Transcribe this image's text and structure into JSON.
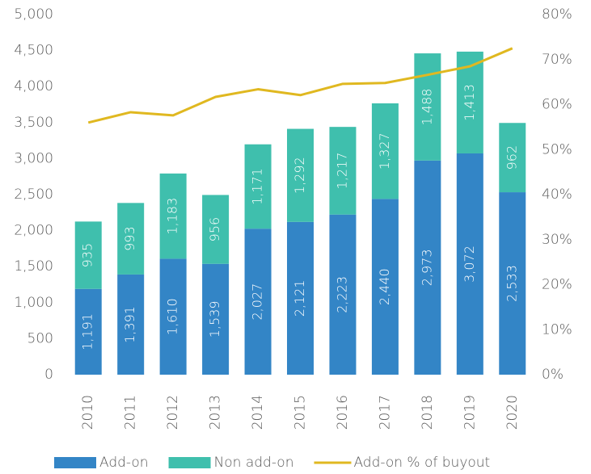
{
  "chart_data": {
    "type": "bar",
    "stacked": true,
    "categories": [
      "2010",
      "2011",
      "2012",
      "2013",
      "2014",
      "2015",
      "2016",
      "2017",
      "2018",
      "2019",
      "2020"
    ],
    "series": [
      {
        "name": "Add-on",
        "type": "bar",
        "color": "#3385c6",
        "values": [
          1191,
          1391,
          1610,
          1539,
          2027,
          2121,
          2223,
          2440,
          2973,
          3072,
          2533
        ],
        "value_labels": [
          "1,191",
          "1,391",
          "1,610",
          "1,539",
          "2,027",
          "2,121",
          "2,223",
          "2,440",
          "2,973",
          "3,072",
          "2,533"
        ]
      },
      {
        "name": "Non add-on",
        "type": "bar",
        "color": "#3fbfad",
        "values": [
          935,
          993,
          1183,
          956,
          1171,
          1292,
          1217,
          1327,
          1488,
          1413,
          962
        ],
        "value_labels": [
          "935",
          "993",
          "1,183",
          "956",
          "1,171",
          "1,292",
          "1,217",
          "1,327",
          "1,488",
          "1,413",
          "962"
        ]
      },
      {
        "name": "Add-on % of buyout",
        "type": "line",
        "axis": "y2",
        "color": "#e0b820",
        "values": [
          56.0,
          58.3,
          57.6,
          61.7,
          63.4,
          62.1,
          64.6,
          64.8,
          66.6,
          68.5,
          72.5
        ]
      }
    ],
    "ylim": [
      0,
      5000
    ],
    "yticks": [
      0,
      500,
      {
        "value": 1000,
        "label": "1,000"
      },
      {
        "value": 1500,
        "label": "1,500"
      },
      {
        "value": 2000,
        "label": "2,000"
      },
      {
        "value": 2500,
        "label": "2,500"
      },
      {
        "value": 3000,
        "label": "3,000"
      },
      {
        "value": 3500,
        "label": "3,500"
      },
      {
        "value": 4000,
        "label": "4,000"
      },
      {
        "value": 4500,
        "label": "4,500"
      },
      {
        "value": 5000,
        "label": "5,000"
      }
    ],
    "y2lim": [
      0,
      80
    ],
    "y2ticks": [
      {
        "value": 0,
        "label": "0%"
      },
      {
        "value": 10,
        "label": "10%"
      },
      {
        "value": 20,
        "label": "20%"
      },
      {
        "value": 30,
        "label": "30%"
      },
      {
        "value": 40,
        "label": "40%"
      },
      {
        "value": 50,
        "label": "50%"
      },
      {
        "value": 60,
        "label": "60%"
      },
      {
        "value": 70,
        "label": "70%"
      },
      {
        "value": 80,
        "label": "80%"
      }
    ],
    "grid": false,
    "legend": "bottom"
  }
}
